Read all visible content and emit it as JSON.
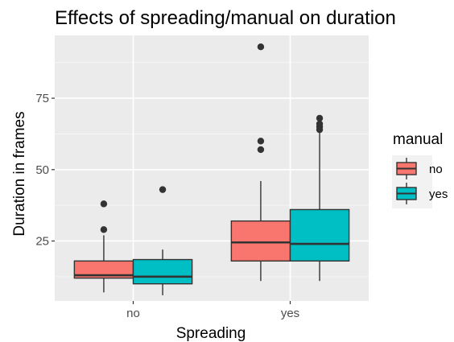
{
  "chart_data": {
    "type": "boxplot",
    "title": "Effects of spreading/manual on duration",
    "xlabel": "Spreading",
    "ylabel": "Duration in frames",
    "categories": [
      "no",
      "yes"
    ],
    "ylim": [
      4,
      97
    ],
    "yticks": [
      25,
      50,
      75
    ],
    "grid": true,
    "legend": {
      "title": "manual",
      "position": "right"
    },
    "series": [
      {
        "name": "no",
        "color": "#F8766D",
        "boxes": [
          {
            "whisker_low": 7,
            "q1": 12,
            "median": 13,
            "q3": 18,
            "whisker_high": 27,
            "outliers": [
              29,
              38
            ]
          },
          {
            "whisker_low": 11,
            "q1": 18,
            "median": 24.5,
            "q3": 32,
            "whisker_high": 46,
            "outliers": [
              57,
              60,
              93
            ]
          }
        ]
      },
      {
        "name": "yes",
        "color": "#00BFC4",
        "boxes": [
          {
            "whisker_low": 6,
            "q1": 10,
            "median": 12.5,
            "q3": 18.5,
            "whisker_high": 22,
            "outliers": [
              43
            ]
          },
          {
            "whisker_low": 11,
            "q1": 18,
            "median": 24,
            "q3": 36,
            "whisker_high": 63,
            "outliers": [
              64,
              65,
              66,
              68
            ]
          }
        ]
      }
    ]
  }
}
